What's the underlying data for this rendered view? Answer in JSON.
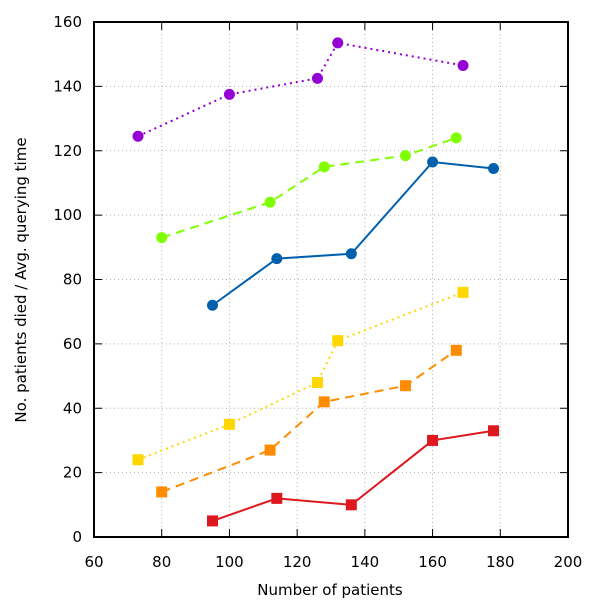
{
  "chart_data": {
    "type": "line",
    "title": "",
    "xlabel": "Number of patients",
    "ylabel": "No. patients died / Avg. querying time",
    "xlim": [
      60,
      200
    ],
    "ylim": [
      0,
      160
    ],
    "xticks": [
      60,
      80,
      100,
      120,
      140,
      160,
      180,
      200
    ],
    "yticks": [
      0,
      20,
      40,
      60,
      80,
      100,
      120,
      140,
      160
    ],
    "grid": true,
    "legend": "none",
    "series": [
      {
        "name": "purple-circles-dotted",
        "color": "#9400d3",
        "marker": "circle",
        "dash": "dotted",
        "points": [
          [
            73,
            124.5
          ],
          [
            100,
            137.5
          ],
          [
            126,
            142.5
          ],
          [
            132,
            153.5
          ],
          [
            169,
            146.5
          ]
        ]
      },
      {
        "name": "green-circles-dashed",
        "color": "#80ff00",
        "marker": "circle",
        "dash": "dashed",
        "points": [
          [
            80,
            93
          ],
          [
            112,
            104
          ],
          [
            128,
            115
          ],
          [
            152,
            118.5
          ],
          [
            167,
            124
          ]
        ]
      },
      {
        "name": "blue-circles-solid",
        "color": "#0060ad",
        "marker": "circle",
        "dash": "solid",
        "points": [
          [
            95,
            72
          ],
          [
            114,
            86.5
          ],
          [
            136,
            88
          ],
          [
            160,
            116.5
          ],
          [
            178,
            114.5
          ]
        ]
      },
      {
        "name": "yellow-squares-dotted",
        "color": "#ffd700",
        "marker": "square",
        "dash": "dotted",
        "points": [
          [
            73,
            24
          ],
          [
            100,
            35
          ],
          [
            126,
            48
          ],
          [
            132,
            61
          ],
          [
            169,
            76
          ]
        ]
      },
      {
        "name": "orange-squares-dashed",
        "color": "#ff8c00",
        "marker": "square",
        "dash": "dashed",
        "points": [
          [
            80,
            14
          ],
          [
            112,
            27
          ],
          [
            128,
            42
          ],
          [
            152,
            47
          ],
          [
            167,
            58
          ]
        ]
      },
      {
        "name": "red-squares-solid",
        "color": "#dd181f",
        "marker": "square",
        "dash": "solid",
        "points": [
          [
            95,
            5
          ],
          [
            114,
            12
          ],
          [
            136,
            10
          ],
          [
            160,
            30
          ],
          [
            178,
            33
          ]
        ]
      }
    ]
  }
}
